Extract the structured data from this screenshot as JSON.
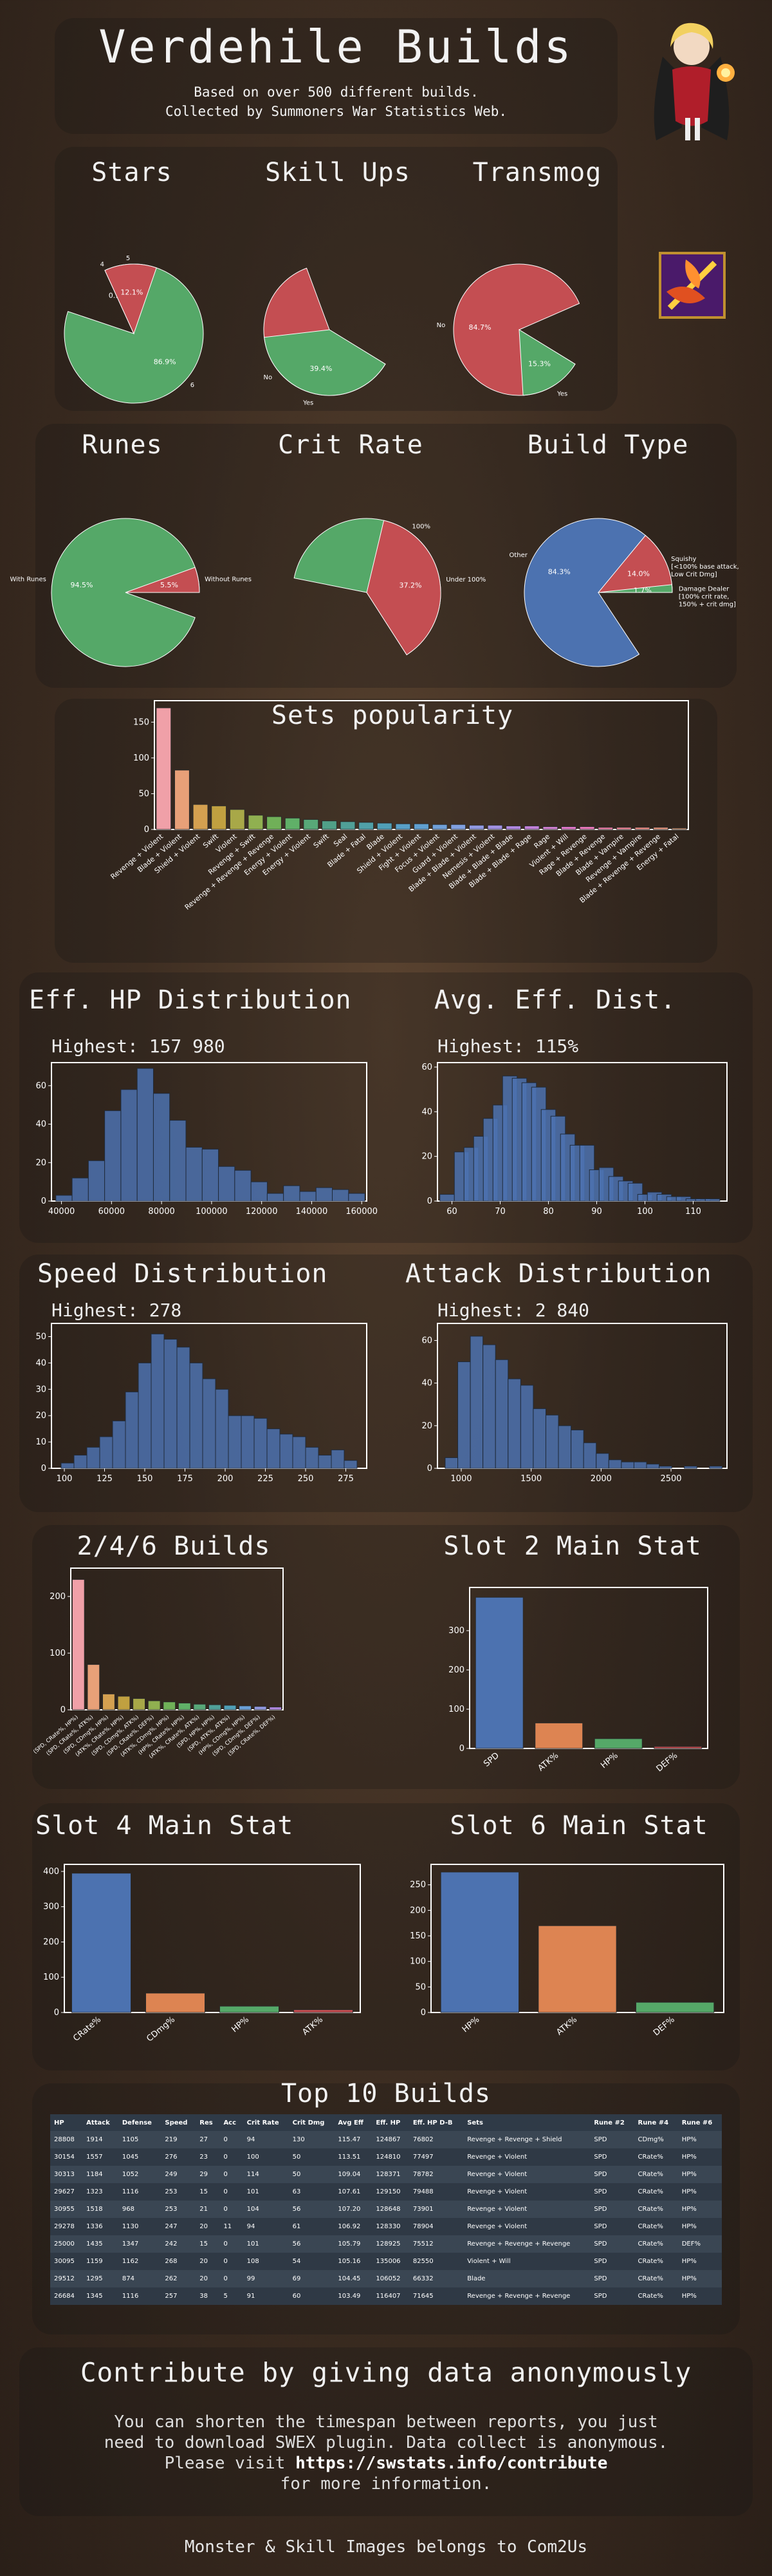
{
  "header": {
    "title": "Verdehile Builds",
    "sub1": "Based on over 500 different builds.",
    "sub2": "Collected by Summoners War Statistics Web."
  },
  "sections": {
    "stars": "Stars",
    "skillups": "Skill Ups",
    "transmog": "Transmog",
    "runes": "Runes",
    "critrate": "Crit Rate",
    "buildtype": "Build Type",
    "sets": "Sets popularity",
    "ehp": "Eff. HP Distribution",
    "avgeff": "Avg. Eff. Dist.",
    "speed": "Speed Distribution",
    "attack": "Attack Distribution",
    "builds246": "2/4/6 Builds",
    "slot2": "Slot 2 Main Stat",
    "slot4": "Slot 4 Main Stat",
    "slot6": "Slot 6 Main Stat",
    "top10": "Top 10 Builds",
    "contribute": "Contribute by giving data anonymously"
  },
  "highest": {
    "ehp": "Highest: 157 980",
    "avgeff": "Highest: 115%",
    "speed": "Highest: 278",
    "attack": "Highest: 2 840"
  },
  "chart_data": [
    {
      "id": "stars",
      "type": "pie",
      "labels": [
        "6",
        "4",
        "5"
      ],
      "values": [
        86.9,
        0.9,
        12.1
      ],
      "pct": [
        "86.9%",
        "0.9%",
        "12.1%"
      ],
      "colors": [
        "#55a868",
        "#4c72b0",
        "#c44e52"
      ]
    },
    {
      "id": "skillups",
      "type": "pie",
      "labels": [
        "No",
        "Yes"
      ],
      "values": [
        60.6,
        39.4
      ],
      "pct": [
        "60.6%",
        "39.4%"
      ],
      "colors": [
        "#c44e52",
        "#55a868"
      ]
    },
    {
      "id": "transmog",
      "type": "pie",
      "labels": [
        "No",
        "Yes"
      ],
      "values": [
        84.7,
        15.3
      ],
      "pct": [
        "84.7%",
        "15.3%"
      ],
      "colors": [
        "#c44e52",
        "#55a868"
      ]
    },
    {
      "id": "runes",
      "type": "pie",
      "labels": [
        "With Runes",
        "Without Runes"
      ],
      "values": [
        94.5,
        5.5
      ],
      "pct": [
        "94.5%",
        "5.5%"
      ],
      "colors": [
        "#55a868",
        "#c44e52"
      ]
    },
    {
      "id": "critrate",
      "type": "pie",
      "labels": [
        "100%",
        "Under 100%"
      ],
      "values": [
        62.8,
        37.2
      ],
      "pct": [
        "62.8%",
        "37.2%"
      ],
      "colors": [
        "#55a868",
        "#c44e52"
      ]
    },
    {
      "id": "buildtype",
      "type": "pie",
      "labels": [
        "Other",
        "Squishy [<100% base attack, Low Crit Dmg]",
        "Damage Dealer [100% crit rate, 150% + crit dmg]"
      ],
      "values": [
        84.3,
        14.0,
        1.7
      ],
      "pct": [
        "84.3%",
        "14.0%",
        "1.7%"
      ],
      "colors": [
        "#4c72b0",
        "#c44e52",
        "#55a868"
      ]
    },
    {
      "id": "sets",
      "type": "bar",
      "categories": [
        "Revenge + Violent",
        "Blade + Violent",
        "Shield + Violent",
        "Swift",
        "Violent",
        "Revenge + Swift",
        "Revenge + Revenge + Revenge",
        "Energy + Violent",
        "Energy + Violent",
        "Swift",
        "Seal",
        "Blade + Fatal",
        "Blade",
        "Shield + Violent",
        "Fight + Violent",
        "Focus + Violent",
        "Guard + Violent",
        "Blade + Blade + Violent",
        "Nemesis + Violent",
        "Blade + Blade + Blade",
        "Blade + Blade + Rage",
        "Rage",
        "Violent + Will",
        "Rage + Revenge",
        "Blade + Revenge",
        "Blade + Vampire",
        "Revenge + Vampire",
        "Blade + Revenge + Revenge",
        "Energy + Fatal"
      ],
      "values": [
        170,
        83,
        35,
        33,
        28,
        20,
        18,
        16,
        14,
        12,
        11,
        10,
        9,
        8,
        8,
        7,
        7,
        6,
        6,
        5,
        5,
        4,
        4,
        4,
        3,
        3,
        3,
        3,
        2
      ],
      "colors": [
        "#f0a0a8",
        "#e8a078",
        "#d4a050",
        "#c0a040",
        "#a8a848",
        "#90b050",
        "#70b058",
        "#60b068",
        "#58a878",
        "#50a088",
        "#50a098",
        "#50a0a8",
        "#50a0b8",
        "#58a0c8",
        "#60a0d0",
        "#70a0d8",
        "#80a0e0",
        "#9098e0",
        "#a090e0",
        "#b088e0",
        "#c080d8",
        "#d080d0",
        "#e078c8",
        "#e878b8",
        "#f080a8",
        "#f08898",
        "#f09088",
        "#e89880",
        "#e0a078"
      ],
      "yticks": [
        0,
        50,
        100,
        150
      ],
      "ylim": [
        0,
        180
      ]
    },
    {
      "id": "ehp",
      "type": "bar",
      "x": [
        41000,
        47500,
        54000,
        60500,
        67000,
        73500,
        80000,
        86500,
        93000,
        99500,
        106000,
        112500,
        119000,
        125500,
        132000,
        138500,
        145000,
        151500,
        158000
      ],
      "values": [
        3,
        12,
        21,
        47,
        58,
        69,
        56,
        42,
        28,
        27,
        18,
        16,
        10,
        4,
        8,
        5,
        7,
        6,
        4
      ],
      "xticks": [
        40000,
        60000,
        80000,
        100000,
        120000,
        140000,
        160000
      ],
      "yticks": [
        0,
        20,
        40,
        60
      ],
      "ylim": [
        0,
        72
      ],
      "xlim": [
        36000,
        162000
      ]
    },
    {
      "id": "avgeff",
      "type": "bar",
      "x": [
        59,
        62,
        64,
        66,
        68,
        70,
        72,
        74,
        76,
        78,
        80,
        82,
        84,
        86,
        88,
        90,
        92,
        94,
        96,
        98,
        100,
        102,
        104,
        106,
        108,
        110,
        112,
        114
      ],
      "values": [
        3,
        22,
        24,
        29,
        37,
        43,
        56,
        55,
        53,
        51,
        41,
        38,
        30,
        25,
        25,
        14,
        15,
        11,
        9,
        8,
        3,
        4,
        3,
        2,
        2,
        1,
        1,
        1
      ],
      "xticks": [
        60,
        70,
        80,
        90,
        100,
        110
      ],
      "yticks": [
        0,
        20,
        40,
        60
      ],
      "ylim": [
        0,
        62
      ],
      "xlim": [
        57,
        117
      ]
    },
    {
      "id": "speed",
      "type": "bar",
      "x": [
        102,
        110,
        118,
        126,
        134,
        142,
        150,
        158,
        166,
        174,
        182,
        190,
        198,
        206,
        214,
        222,
        230,
        238,
        246,
        254,
        262,
        270,
        278
      ],
      "values": [
        2,
        5,
        8,
        12,
        18,
        29,
        40,
        51,
        49,
        46,
        40,
        34,
        30,
        20,
        20,
        19,
        15,
        13,
        12,
        8,
        5,
        7,
        3
      ],
      "xticks": [
        100,
        125,
        150,
        175,
        200,
        225,
        250,
        275
      ],
      "yticks": [
        0,
        10,
        20,
        30,
        40,
        50
      ],
      "ylim": [
        0,
        55
      ],
      "xlim": [
        92,
        288
      ]
    },
    {
      "id": "attack",
      "type": "bar",
      "x": [
        930,
        1020,
        1110,
        1200,
        1290,
        1380,
        1470,
        1560,
        1650,
        1740,
        1830,
        1920,
        2010,
        2100,
        2190,
        2280,
        2370,
        2460,
        2550,
        2640,
        2730,
        2820
      ],
      "values": [
        5,
        50,
        62,
        58,
        51,
        42,
        39,
        28,
        25,
        20,
        18,
        12,
        7,
        4,
        3,
        3,
        2,
        1,
        0,
        1,
        0,
        1
      ],
      "xticks": [
        1000,
        1500,
        2000,
        2500
      ],
      "yticks": [
        0,
        20,
        40,
        60
      ],
      "ylim": [
        0,
        68
      ],
      "xlim": [
        830,
        2900
      ]
    },
    {
      "id": "builds246",
      "type": "bar",
      "categories": [
        "(SPD, CRate%, HP%)",
        "(SPD, CRate%, ATK%)",
        "(SPD, CDmg%, HP%)",
        "(ATK%, CRate%, HP%)",
        "(SPD, CDmg%, ATK%)",
        "(SPD, CRate%, DEF%)",
        "(ATK%, CDmg%, HP%)",
        "(HP%, CRate%, HP%)",
        "(ATK%, CRate%, ATK%)",
        "(SPD, HP%, HP%)",
        "(SPD, ATK%, ATK%)",
        "(HP%, CDmg%, HP%)",
        "(SPD, CDmg%, DEF%)",
        "(SPD, CRate%, DEF%)"
      ],
      "values": [
        230,
        80,
        28,
        24,
        20,
        16,
        14,
        12,
        10,
        9,
        8,
        7,
        6,
        5
      ],
      "colors": [
        "#f0a0a8",
        "#e8a078",
        "#d4a050",
        "#c0a040",
        "#a8a848",
        "#90b050",
        "#70b058",
        "#60b068",
        "#58a878",
        "#50a098",
        "#50a0b8",
        "#6aa0d8",
        "#9098e0",
        "#b088e0"
      ],
      "yticks": [
        0,
        100,
        200
      ],
      "ylim": [
        0,
        250
      ]
    },
    {
      "id": "slot2",
      "type": "bar",
      "categories": [
        "SPD",
        "ATK%",
        "HP%",
        "DEF%"
      ],
      "values": [
        385,
        65,
        25,
        5
      ],
      "colors": [
        "#4c72b0",
        "#dd8452",
        "#55a868",
        "#c44e52"
      ],
      "yticks": [
        0,
        100,
        200,
        300
      ],
      "ylim": [
        0,
        410
      ]
    },
    {
      "id": "slot4",
      "type": "bar",
      "categories": [
        "CRate%",
        "CDmg%",
        "HP%",
        "ATK%"
      ],
      "values": [
        395,
        55,
        18,
        8
      ],
      "colors": [
        "#4c72b0",
        "#dd8452",
        "#55a868",
        "#c44e52"
      ],
      "yticks": [
        0,
        100,
        200,
        300,
        400
      ],
      "ylim": [
        0,
        420
      ]
    },
    {
      "id": "slot6",
      "type": "bar",
      "categories": [
        "HP%",
        "ATK%",
        "DEF%"
      ],
      "values": [
        275,
        170,
        20
      ],
      "colors": [
        "#4c72b0",
        "#dd8452",
        "#55a868"
      ],
      "yticks": [
        0,
        50,
        100,
        150,
        200,
        250
      ],
      "ylim": [
        0,
        290
      ]
    }
  ],
  "table": {
    "headers": [
      "HP",
      "Attack",
      "Defense",
      "Speed",
      "Res",
      "Acc",
      "Crit Rate",
      "Crit Dmg",
      "Avg Eff",
      "Eff. HP",
      "Eff. HP D-B",
      "Sets",
      "Rune #2",
      "Rune #4",
      "Rune #6"
    ],
    "rows": [
      [
        "28808",
        "1914",
        "1105",
        "219",
        "27",
        "0",
        "94",
        "130",
        "115.47",
        "124867",
        "76802",
        "Revenge + Revenge + Shield",
        "SPD",
        "CDmg%",
        "HP%"
      ],
      [
        "30154",
        "1557",
        "1045",
        "276",
        "23",
        "0",
        "100",
        "50",
        "113.51",
        "124810",
        "77497",
        "Revenge + Violent",
        "SPD",
        "CRate%",
        "HP%"
      ],
      [
        "30313",
        "1184",
        "1052",
        "249",
        "29",
        "0",
        "114",
        "50",
        "109.04",
        "128371",
        "78782",
        "Revenge + Violent",
        "SPD",
        "CRate%",
        "HP%"
      ],
      [
        "29627",
        "1323",
        "1116",
        "253",
        "15",
        "0",
        "101",
        "63",
        "107.61",
        "129150",
        "79488",
        "Revenge + Violent",
        "SPD",
        "CRate%",
        "HP%"
      ],
      [
        "30955",
        "1518",
        "968",
        "253",
        "21",
        "0",
        "104",
        "56",
        "107.20",
        "128648",
        "73901",
        "Revenge + Violent",
        "SPD",
        "CRate%",
        "HP%"
      ],
      [
        "29278",
        "1336",
        "1130",
        "247",
        "20",
        "11",
        "94",
        "61",
        "106.92",
        "128330",
        "78904",
        "Revenge + Violent",
        "SPD",
        "CRate%",
        "HP%"
      ],
      [
        "25000",
        "1435",
        "1347",
        "242",
        "15",
        "0",
        "101",
        "56",
        "105.79",
        "128925",
        "75512",
        "Revenge + Revenge + Revenge",
        "SPD",
        "CRate%",
        "DEF%"
      ],
      [
        "30095",
        "1159",
        "1162",
        "268",
        "20",
        "0",
        "108",
        "54",
        "105.16",
        "135006",
        "82550",
        "Violent + Will",
        "SPD",
        "CRate%",
        "HP%"
      ],
      [
        "29512",
        "1295",
        "874",
        "262",
        "20",
        "0",
        "99",
        "69",
        "104.45",
        "106052",
        "66332",
        "Blade",
        "SPD",
        "CRate%",
        "HP%"
      ],
      [
        "26684",
        "1345",
        "1116",
        "257",
        "38",
        "5",
        "91",
        "60",
        "103.49",
        "116407",
        "71645",
        "Revenge + Revenge + Revenge",
        "SPD",
        "CRate%",
        "HP%"
      ]
    ]
  },
  "footer": {
    "line1": "You can shorten the timespan between reports, you just",
    "line2": "need to download SWEX plugin. Data collect is anonymous.",
    "line3_pre": "Please visit ",
    "link": "https://swstats.info/contribute",
    "line4": "for more information.",
    "credit": "Monster & Skill Images belongs to Com2Us"
  }
}
